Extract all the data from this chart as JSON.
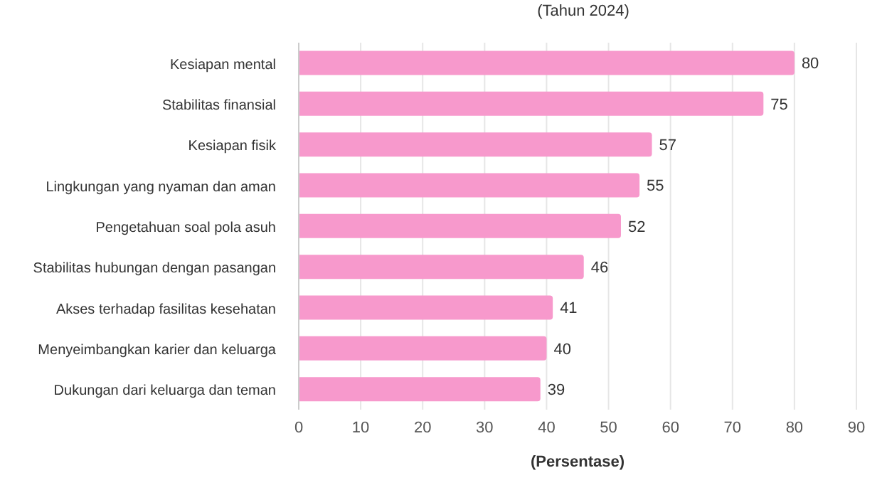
{
  "chart_data": {
    "type": "bar",
    "orientation": "horizontal",
    "subtitle": "(Tahun 2024)",
    "xlabel": "(Persentase)",
    "categories": [
      "Kesiapan mental",
      "Stabilitas finansial",
      "Kesiapan fisik",
      "Lingkungan yang nyaman dan aman",
      "Pengetahuan soal pola asuh",
      "Stabilitas hubungan dengan pasangan",
      "Akses terhadap fasilitas kesehatan",
      "Menyeimbangkan karier dan keluarga",
      "Dukungan dari keluarga dan teman"
    ],
    "values": [
      80,
      75,
      57,
      55,
      52,
      46,
      41,
      40,
      39
    ],
    "color": "#f799cc",
    "xlim": [
      0,
      90
    ],
    "xticks": [
      0,
      10,
      20,
      30,
      40,
      50,
      60,
      70,
      80,
      90
    ],
    "grid": "x",
    "data_labels": true
  }
}
